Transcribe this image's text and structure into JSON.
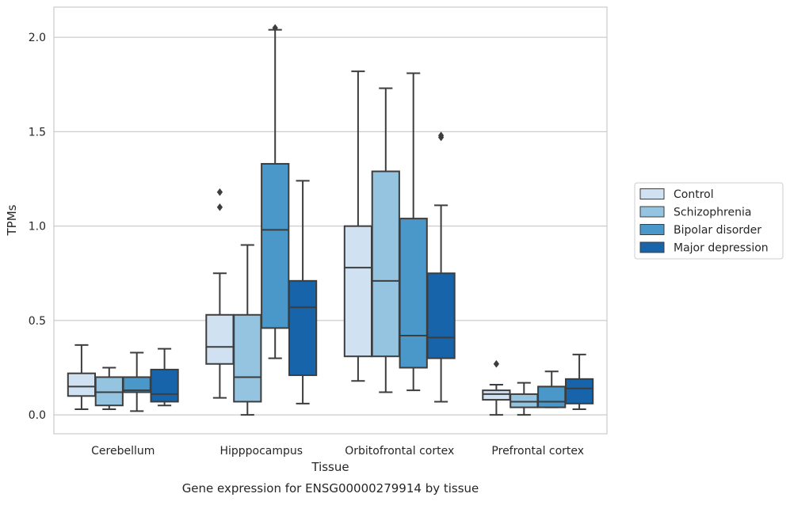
{
  "chart_data": {
    "type": "box",
    "title": "",
    "caption": "Gene expression for ENSG00000279914 by tissue",
    "xlabel": "Tissue",
    "ylabel": "TPMs",
    "ylim": [
      -0.1,
      2.16
    ],
    "yticks": [
      0.0,
      0.5,
      1.0,
      1.5,
      2.0
    ],
    "ytick_labels": [
      "0.0",
      "0.5",
      "1.0",
      "1.5",
      "2.0"
    ],
    "grid": "horizontal",
    "legend_position": "right",
    "categories": [
      "Cerebellum",
      "Hipppocampus",
      "Orbitofrontal cortex",
      "Prefrontal cortex"
    ],
    "series": [
      {
        "name": "Control",
        "color": "#d0e1f2",
        "boxes": [
          {
            "whislo": 0.03,
            "q1": 0.1,
            "med": 0.15,
            "q3": 0.22,
            "whishi": 0.37,
            "fliers": []
          },
          {
            "whislo": 0.09,
            "q1": 0.27,
            "med": 0.36,
            "q3": 0.53,
            "whishi": 0.75,
            "fliers": [
              1.1,
              1.18
            ]
          },
          {
            "whislo": 0.18,
            "q1": 0.31,
            "med": 0.78,
            "q3": 1.0,
            "whishi": 1.82,
            "fliers": []
          },
          {
            "whislo": 0.0,
            "q1": 0.08,
            "med": 0.11,
            "q3": 0.13,
            "whishi": 0.16,
            "fliers": [
              0.27
            ]
          }
        ]
      },
      {
        "name": "Schizophrenia",
        "color": "#94c4df",
        "boxes": [
          {
            "whislo": 0.03,
            "q1": 0.05,
            "med": 0.12,
            "q3": 0.2,
            "whishi": 0.25,
            "fliers": []
          },
          {
            "whislo": 0.0,
            "q1": 0.07,
            "med": 0.2,
            "q3": 0.53,
            "whishi": 0.9,
            "fliers": []
          },
          {
            "whislo": 0.12,
            "q1": 0.31,
            "med": 0.71,
            "q3": 1.29,
            "whishi": 1.73,
            "fliers": []
          },
          {
            "whislo": 0.0,
            "q1": 0.04,
            "med": 0.07,
            "q3": 0.11,
            "whishi": 0.17,
            "fliers": []
          }
        ]
      },
      {
        "name": "Bipolar disorder",
        "color": "#4a98c9",
        "boxes": [
          {
            "whislo": 0.02,
            "q1": 0.12,
            "med": 0.13,
            "q3": 0.2,
            "whishi": 0.33,
            "fliers": []
          },
          {
            "whislo": 0.3,
            "q1": 0.46,
            "med": 0.98,
            "q3": 1.33,
            "whishi": 2.04,
            "fliers": [
              2.05
            ]
          },
          {
            "whislo": 0.13,
            "q1": 0.25,
            "med": 0.42,
            "q3": 1.04,
            "whishi": 1.81,
            "fliers": []
          },
          {
            "whislo": 0.04,
            "q1": 0.04,
            "med": 0.07,
            "q3": 0.15,
            "whishi": 0.23,
            "fliers": []
          }
        ]
      },
      {
        "name": "Major depression",
        "color": "#1764ab",
        "boxes": [
          {
            "whislo": 0.05,
            "q1": 0.07,
            "med": 0.11,
            "q3": 0.24,
            "whishi": 0.35,
            "fliers": []
          },
          {
            "whislo": 0.06,
            "q1": 0.21,
            "med": 0.57,
            "q3": 0.71,
            "whishi": 1.24,
            "fliers": []
          },
          {
            "whislo": 0.07,
            "q1": 0.3,
            "med": 0.41,
            "q3": 0.75,
            "whishi": 1.11,
            "fliers": [
              1.47,
              1.48
            ]
          },
          {
            "whislo": 0.03,
            "q1": 0.06,
            "med": 0.14,
            "q3": 0.19,
            "whishi": 0.32,
            "fliers": []
          }
        ]
      }
    ]
  }
}
